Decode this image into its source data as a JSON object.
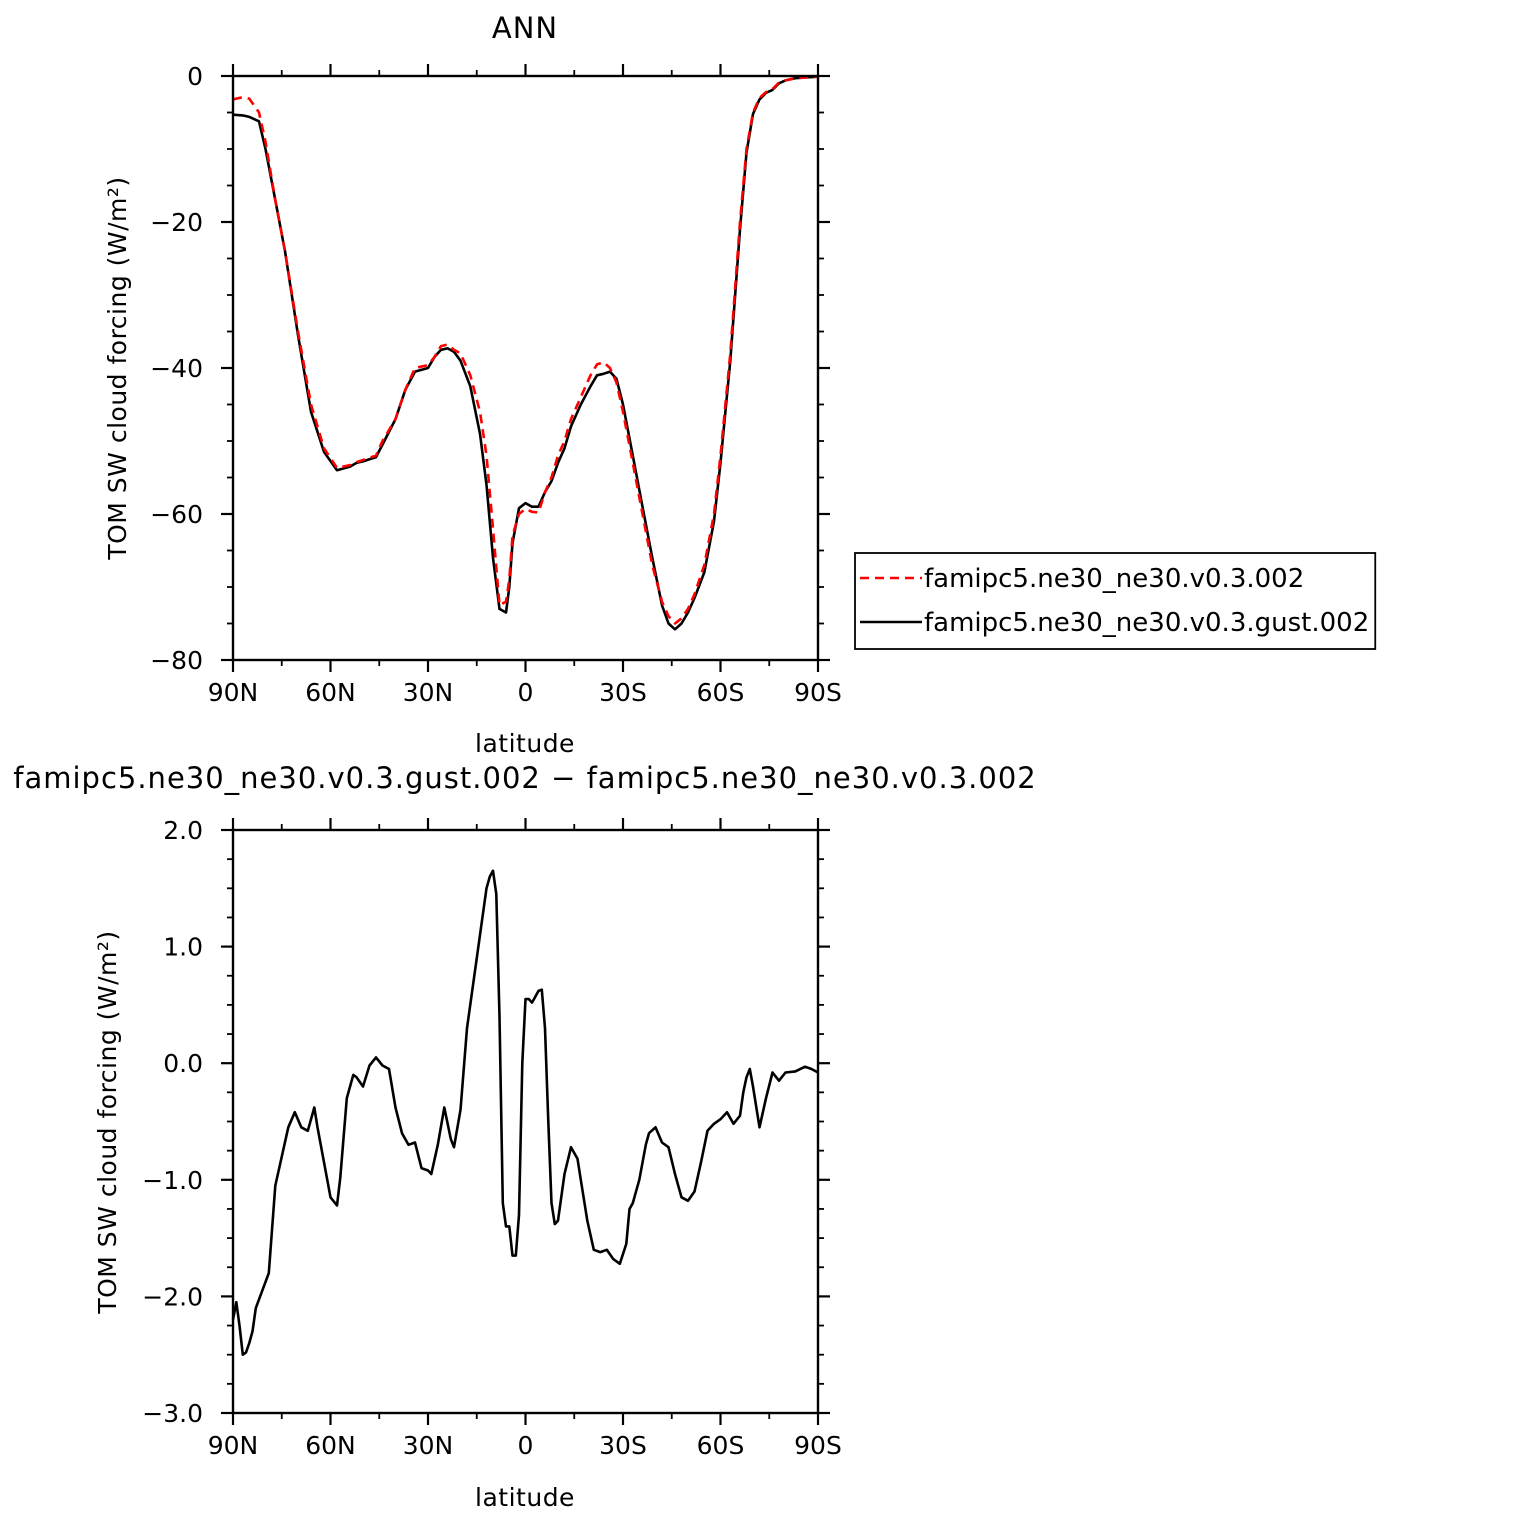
{
  "chart_data": [
    {
      "type": "line",
      "title": "ANN",
      "xlabel": "latitude",
      "ylabel": "TOM SW cloud forcing (W/m²)",
      "ylim": [
        -80,
        0
      ],
      "xlim": [
        90,
        -90
      ],
      "x_ticks": [
        90,
        60,
        30,
        0,
        -30,
        -60,
        -90
      ],
      "x_tick_labels": [
        "90N",
        "60N",
        "30N",
        "0",
        "30S",
        "60S",
        "90S"
      ],
      "y_ticks": [
        0,
        -20,
        -40,
        -60,
        -80
      ],
      "y_tick_labels": [
        "0",
        "−20",
        "−40",
        "−60",
        "−80"
      ],
      "grid": false,
      "legend_placement": "right",
      "series": [
        {
          "name": "famipc5.ne30_ne30.v0.3.002",
          "color": "#ff0000",
          "dash": "dashed",
          "x": [
            90,
            87,
            85,
            82,
            80,
            77,
            74,
            70,
            66,
            62,
            58,
            54,
            52,
            50,
            46,
            44,
            40,
            37,
            34,
            30,
            28,
            26,
            24,
            22,
            20,
            17,
            14,
            12,
            10,
            8,
            6,
            5,
            4,
            2,
            0,
            -2,
            -4,
            -6,
            -8,
            -10,
            -12,
            -14,
            -17,
            -20,
            -22,
            -24,
            -26,
            -28,
            -30,
            -33,
            -36,
            -39,
            -42,
            -44,
            -46,
            -48,
            -50,
            -52,
            -55,
            -58,
            -60,
            -63,
            -66,
            -68,
            -70,
            -72,
            -74,
            -76,
            -78,
            -80,
            -83,
            -86,
            -90
          ],
          "y": [
            -3.2,
            -2.9,
            -3.1,
            -5,
            -9,
            -17,
            -24,
            -35,
            -45,
            -51,
            -53.7,
            -53.3,
            -52.9,
            -52.6,
            -52,
            -50,
            -47,
            -43,
            -40,
            -39.6,
            -38.5,
            -37,
            -36.8,
            -37.5,
            -38,
            -41,
            -46,
            -52,
            -62,
            -72.5,
            -72,
            -69,
            -63,
            -60,
            -59.3,
            -59.7,
            -59.8,
            -57,
            -55,
            -52,
            -50,
            -47,
            -44,
            -41,
            -39.5,
            -39.2,
            -40,
            -42,
            -46,
            -53,
            -60,
            -67,
            -72,
            -74,
            -75,
            -74.3,
            -73,
            -71,
            -67,
            -60,
            -52,
            -38,
            -20,
            -10,
            -5,
            -3,
            -2.2,
            -1.8,
            -0.9,
            -0.6,
            -0.3,
            -0.2,
            -0.1
          ]
        },
        {
          "name": "famipc5.ne30_ne30.v0.3.gust.002",
          "color": "#000000",
          "dash": "solid",
          "x": [
            90,
            87,
            85,
            82,
            80,
            77,
            74,
            70,
            66,
            62,
            58,
            54,
            52,
            50,
            46,
            44,
            40,
            37,
            34,
            30,
            28,
            26,
            24,
            22,
            20,
            17,
            14,
            12,
            10,
            8,
            6,
            5,
            4,
            2,
            0,
            -2,
            -4,
            -6,
            -8,
            -10,
            -12,
            -14,
            -17,
            -20,
            -22,
            -24,
            -26,
            -28,
            -30,
            -33,
            -36,
            -39,
            -42,
            -44,
            -46,
            -48,
            -50,
            -52,
            -55,
            -58,
            -60,
            -63,
            -66,
            -68,
            -70,
            -72,
            -74,
            -76,
            -78,
            -80,
            -83,
            -86,
            -90
          ],
          "y": [
            -5.3,
            -5.4,
            -5.6,
            -6.2,
            -10,
            -17,
            -24,
            -35.5,
            -46,
            -51.5,
            -54,
            -53.5,
            -53,
            -52.8,
            -52.2,
            -50.5,
            -47,
            -43,
            -40.5,
            -40,
            -38.5,
            -37.5,
            -37.3,
            -37.8,
            -39,
            -42.5,
            -49,
            -56,
            -66,
            -73,
            -73.5,
            -70,
            -64,
            -59.2,
            -58.5,
            -59,
            -59,
            -57,
            -55.5,
            -53,
            -51,
            -48,
            -45,
            -42.5,
            -41,
            -40.8,
            -40.5,
            -41.5,
            -45,
            -52,
            -59,
            -66,
            -72.5,
            -75,
            -75.8,
            -75,
            -73.5,
            -71.5,
            -68,
            -61,
            -53,
            -39,
            -21,
            -10.5,
            -5.2,
            -3.2,
            -2.3,
            -1.9,
            -1,
            -0.6,
            -0.3,
            -0.2,
            -0.1
          ]
        }
      ]
    },
    {
      "type": "line",
      "title": "famipc5.ne30_ne30.v0.3.gust.002 − famipc5.ne30_ne30.v0.3.002",
      "xlabel": "latitude",
      "ylabel": "TOM SW cloud forcing (W/m²)",
      "ylim": [
        -3.0,
        2.0
      ],
      "xlim": [
        90,
        -90
      ],
      "x_ticks": [
        90,
        60,
        30,
        0,
        -30,
        -60,
        -90
      ],
      "x_tick_labels": [
        "90N",
        "60N",
        "30N",
        "0",
        "30S",
        "60S",
        "90S"
      ],
      "y_ticks": [
        2.0,
        1.0,
        0.0,
        -1.0,
        -2.0,
        -3.0
      ],
      "y_tick_labels": [
        "2.0",
        "1.0",
        "0.0",
        "−1.0",
        "−2.0",
        "−3.0"
      ],
      "grid": false,
      "series": [
        {
          "color": "#000000",
          "dash": "solid",
          "x": [
            90,
            89,
            88,
            87,
            86,
            85,
            84,
            83,
            81,
            79,
            77,
            75,
            73,
            71,
            69,
            67,
            65,
            64,
            62,
            60,
            58,
            57,
            55,
            53,
            52,
            50,
            48,
            46,
            44,
            42,
            40,
            38,
            36,
            34,
            32,
            30,
            29,
            27,
            25,
            23,
            22,
            20,
            18,
            16,
            14,
            12,
            11,
            10,
            9,
            8,
            7,
            6,
            5,
            4,
            3,
            2,
            1,
            0,
            -1,
            -2,
            -3,
            -4,
            -5,
            -6,
            -7,
            -8,
            -9,
            -10,
            -12,
            -14,
            -16,
            -17,
            -19,
            -21,
            -23,
            -25,
            -27,
            -29,
            -31,
            -32,
            -33,
            -35,
            -37,
            -38,
            -40,
            -42,
            -44,
            -46,
            -48,
            -50,
            -52,
            -54,
            -56,
            -58,
            -60,
            -62,
            -64,
            -66,
            -67,
            -68,
            -69,
            -70,
            -72,
            -74,
            -76,
            -78,
            -80,
            -83,
            -86,
            -88,
            -90
          ],
          "y": [
            -2.2,
            -2.05,
            -2.25,
            -2.5,
            -2.48,
            -2.4,
            -2.3,
            -2.1,
            -1.95,
            -1.8,
            -1.05,
            -0.8,
            -0.55,
            -0.42,
            -0.55,
            -0.58,
            -0.38,
            -0.55,
            -0.85,
            -1.15,
            -1.22,
            -0.98,
            -0.3,
            -0.1,
            -0.12,
            -0.2,
            -0.02,
            0.05,
            -0.02,
            -0.05,
            -0.38,
            -0.6,
            -0.7,
            -0.68,
            -0.9,
            -0.92,
            -0.95,
            -0.7,
            -0.38,
            -0.65,
            -0.72,
            -0.4,
            0.3,
            0.7,
            1.1,
            1.5,
            1.6,
            1.65,
            1.45,
            0.4,
            -1.2,
            -1.4,
            -1.4,
            -1.65,
            -1.65,
            -1.3,
            0.0,
            0.55,
            0.55,
            0.52,
            0.57,
            0.62,
            0.63,
            0.3,
            -0.5,
            -1.2,
            -1.38,
            -1.35,
            -0.95,
            -0.72,
            -0.82,
            -1.0,
            -1.35,
            -1.6,
            -1.62,
            -1.6,
            -1.68,
            -1.72,
            -1.55,
            -1.25,
            -1.2,
            -1.0,
            -0.7,
            -0.6,
            -0.55,
            -0.68,
            -0.72,
            -0.95,
            -1.15,
            -1.18,
            -1.1,
            -0.85,
            -0.58,
            -0.52,
            -0.48,
            -0.42,
            -0.52,
            -0.45,
            -0.25,
            -0.12,
            -0.05,
            -0.2,
            -0.55,
            -0.3,
            -0.08,
            -0.15,
            -0.08,
            -0.07,
            -0.03,
            -0.05,
            -0.08
          ]
        }
      ]
    }
  ]
}
